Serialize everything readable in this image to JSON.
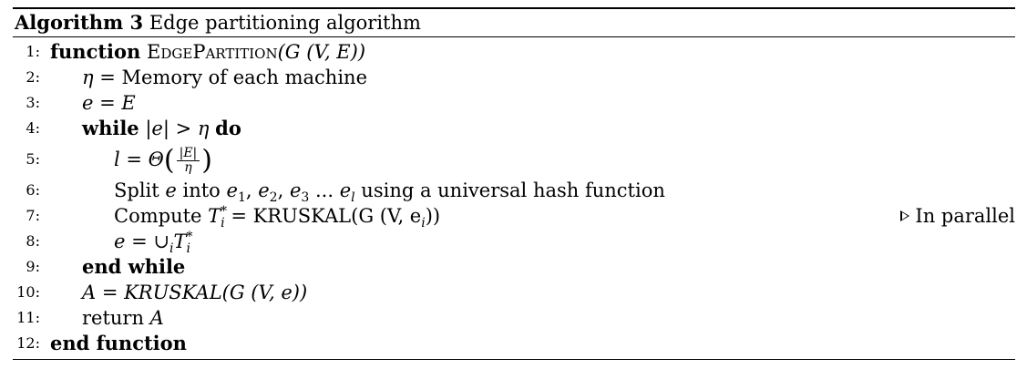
{
  "caption": {
    "head": "Algorithm 3",
    "title": "Edge partitioning algorithm"
  },
  "lines": [
    {
      "no": "1:"
    },
    {
      "no": "2:"
    },
    {
      "no": "3:"
    },
    {
      "no": "4:"
    },
    {
      "no": "5:"
    },
    {
      "no": "6:"
    },
    {
      "no": "7:"
    },
    {
      "no": "8:"
    },
    {
      "no": "9:"
    },
    {
      "no": "10:"
    },
    {
      "no": "11:"
    },
    {
      "no": "12:"
    }
  ],
  "text": {
    "l1_kw": "function",
    "l1_name_big1": "E",
    "l1_name_small1": "DGE",
    "l1_name_big2": "P",
    "l1_name_small2": "ARTITION",
    "l1_args": "(G (V, E))",
    "l2_lhs": "η",
    "l2_rest": " = Memory of each machine",
    "l3": "e = E",
    "l4_kw": "while",
    "l4_cond": " |e| > η ",
    "l4_do": "do",
    "l5_lhs": "l = Θ",
    "l5_num": "|E|",
    "l5_den": "η",
    "l6_pre": "Split ",
    "l6_e": "e",
    "l6_mid": " into ",
    "l6_list": "e",
    "l6_s1": "1",
    "l6_s2": "2",
    "l6_s3": "3",
    "l6_sl": "l",
    "l6_post": " using a universal hash function",
    "l7_pre": "Compute ",
    "l7_T": "T",
    "l7_sub": "i",
    "l7_sup": "*",
    "l7_post": " = KRUSKAL(G (V, e",
    "l7_end": "))",
    "l7_comment": "In parallel",
    "l8_pre": "e = ∪",
    "l8_i": "i",
    "l8_T": "T",
    "l8_sub": "i",
    "l8_sup": "*",
    "l9": "end while",
    "l10": "A = KRUSKAL(G (V, e))",
    "l11_pre": "return ",
    "l11_var": "A",
    "l12": "end function"
  }
}
